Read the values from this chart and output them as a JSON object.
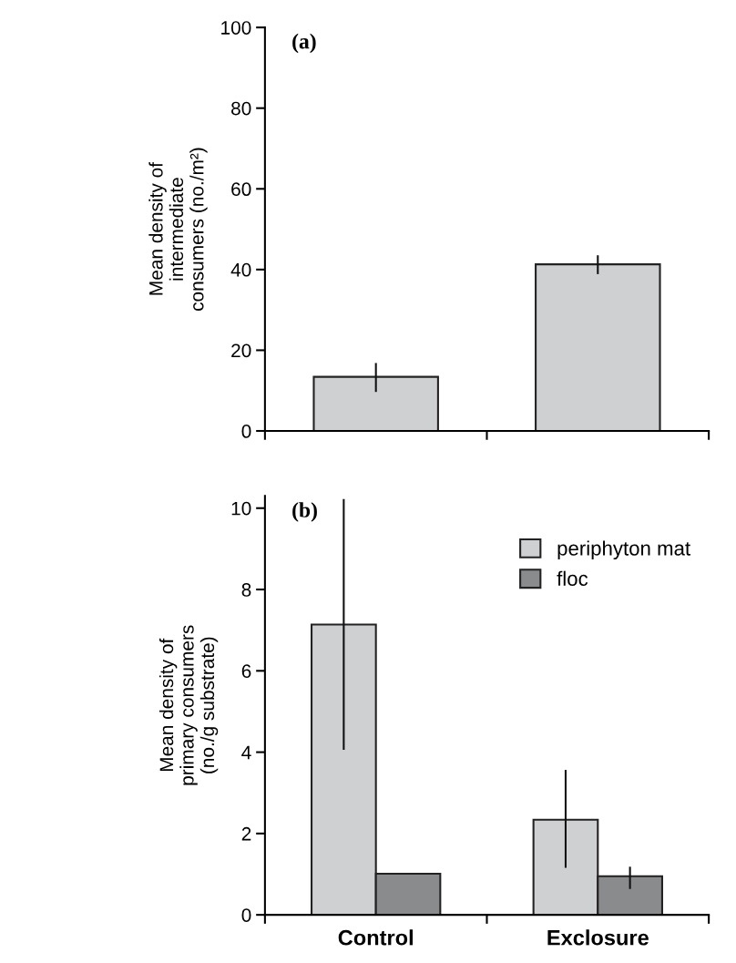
{
  "chart_data": [
    {
      "type": "bar",
      "categories": [
        null,
        null
      ],
      "tick_labels": "y",
      "ylabel": "Mean density of\nintermediate\nconsumers (no./m²)",
      "annotations": [
        "(a)"
      ],
      "ylim": [
        0,
        100
      ],
      "yticks": [
        0,
        20,
        40,
        60,
        80,
        100
      ],
      "legend": false,
      "series": [
        {
          "color": "#cfd0d2",
          "values": [
            13.4,
            41.3
          ],
          "errors": [
            [
              9.9,
              16.6
            ],
            [
              39.1,
              43.3
            ]
          ]
        }
      ]
    },
    {
      "type": "bar",
      "categories": [
        "Control",
        "Exclosure"
      ],
      "ylabel": "Mean density of\nprimary consumers\n(no./g substrate)",
      "annotations": [
        "(b)"
      ],
      "ylim": [
        0,
        10.3
      ],
      "yticks": [
        0,
        2,
        4,
        6,
        8,
        10
      ],
      "legend": "top right",
      "series": [
        {
          "name": "periphyton mat",
          "color": "#cfd0d2",
          "values": [
            7.14,
            2.34
          ],
          "errors": [
            [
              4.08,
              10.2
            ],
            [
              1.18,
              3.54
            ]
          ]
        },
        {
          "name": "floc",
          "color": "#8a8b8d",
          "values": [
            1.01,
            0.95
          ],
          "errors": [
            null,
            [
              0.66,
              1.16
            ]
          ]
        }
      ]
    }
  ]
}
